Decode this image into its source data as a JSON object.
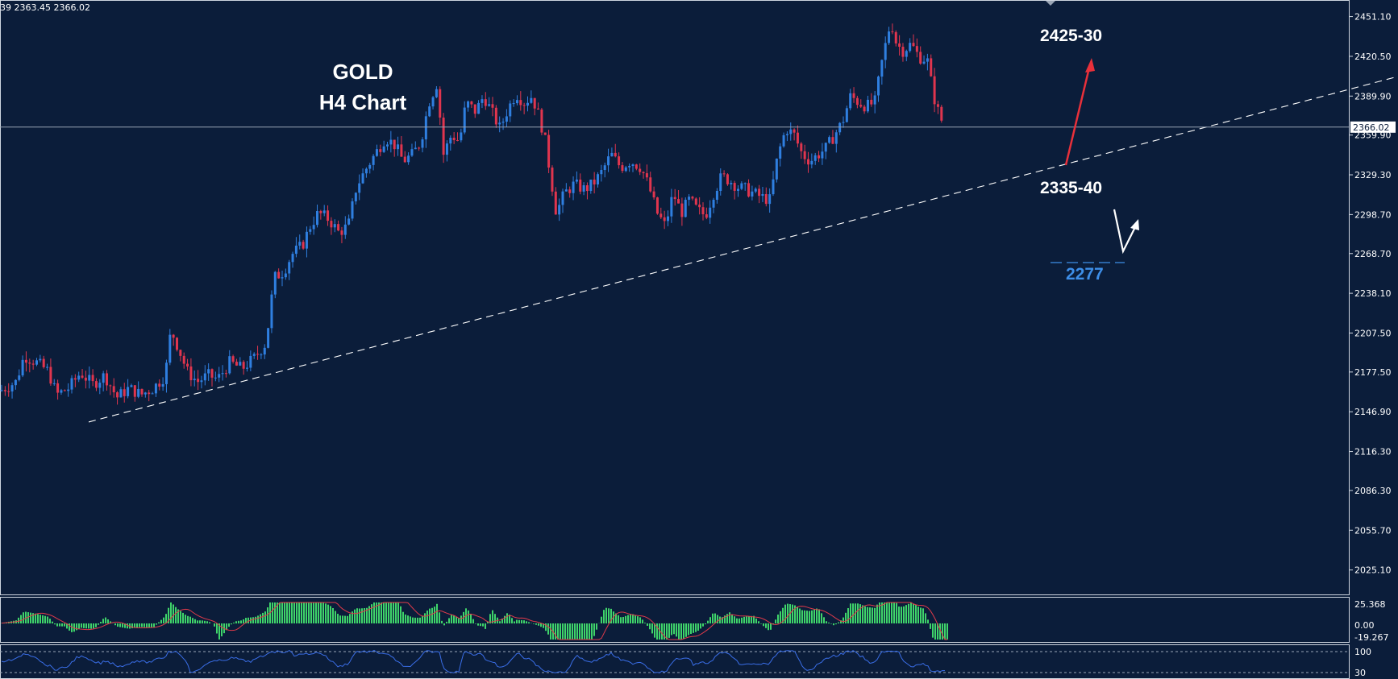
{
  "header": {
    "ohlc_text": "39 2363.45 2366.02"
  },
  "chart_title": {
    "line1": "GOLD",
    "line2": "H4 Chart"
  },
  "annotations": {
    "target_up": "2425-30",
    "support": "2335-40",
    "lower_support": "2277"
  },
  "current_price_label": "2366.02",
  "colors": {
    "background": "#0b1d3a",
    "bull": "#2f7fe0",
    "bear": "#e0354e",
    "arrow_up": "#e8303a",
    "arrow_down": "#ffffff",
    "macd_hist": "#3fd46a",
    "macd_signal": "#e03a4a",
    "rsi_line": "#3a6ee8",
    "annotation_blue": "#3d8ee8"
  },
  "chart_data": {
    "type": "candlestick",
    "title": "GOLD H4 Chart",
    "ylim": [
      2010,
      2462
    ],
    "y_ticks": [
      "2451.10",
      "2420.50",
      "2389.90",
      "2359.90",
      "2329.30",
      "2298.70",
      "2268.70",
      "2238.10",
      "2207.50",
      "2177.50",
      "2146.90",
      "2116.30",
      "2086.30",
      "2055.70",
      "2025.10"
    ],
    "current_price": 2366.02,
    "price_path": [
      [
        0,
        2163
      ],
      [
        20,
        2170
      ],
      [
        30,
        2190
      ],
      [
        45,
        2185
      ],
      [
        60,
        2178
      ],
      [
        70,
        2160
      ],
      [
        85,
        2165
      ],
      [
        100,
        2177
      ],
      [
        115,
        2168
      ],
      [
        130,
        2175
      ],
      [
        145,
        2158
      ],
      [
        160,
        2165
      ],
      [
        175,
        2160
      ],
      [
        190,
        2165
      ],
      [
        205,
        2175
      ],
      [
        212,
        2210
      ],
      [
        222,
        2195
      ],
      [
        232,
        2178
      ],
      [
        245,
        2170
      ],
      [
        258,
        2175
      ],
      [
        270,
        2172
      ],
      [
        285,
        2185
      ],
      [
        300,
        2180
      ],
      [
        315,
        2188
      ],
      [
        330,
        2200
      ],
      [
        340,
        2250
      ],
      [
        352,
        2255
      ],
      [
        362,
        2268
      ],
      [
        375,
        2275
      ],
      [
        385,
        2290
      ],
      [
        395,
        2300
      ],
      [
        408,
        2295
      ],
      [
        420,
        2285
      ],
      [
        432,
        2290
      ],
      [
        442,
        2320
      ],
      [
        455,
        2335
      ],
      [
        468,
        2348
      ],
      [
        478,
        2358
      ],
      [
        490,
        2352
      ],
      [
        500,
        2340
      ],
      [
        512,
        2345
      ],
      [
        522,
        2355
      ],
      [
        532,
        2385
      ],
      [
        542,
        2400
      ],
      [
        550,
        2345
      ],
      [
        560,
        2360
      ],
      [
        570,
        2355
      ],
      [
        578,
        2385
      ],
      [
        590,
        2378
      ],
      [
        600,
        2390
      ],
      [
        612,
        2375
      ],
      [
        620,
        2365
      ],
      [
        630,
        2380
      ],
      [
        640,
        2392
      ],
      [
        650,
        2385
      ],
      [
        660,
        2390
      ],
      [
        668,
        2375
      ],
      [
        675,
        2360
      ],
      [
        680,
        2340
      ],
      [
        690,
        2300
      ],
      [
        700,
        2315
      ],
      [
        712,
        2322
      ],
      [
        725,
        2318
      ],
      [
        735,
        2322
      ],
      [
        745,
        2330
      ],
      [
        758,
        2345
      ],
      [
        770,
        2335
      ],
      [
        782,
        2340
      ],
      [
        795,
        2335
      ],
      [
        805,
        2320
      ],
      [
        815,
        2300
      ],
      [
        825,
        2290
      ],
      [
        835,
        2315
      ],
      [
        845,
        2300
      ],
      [
        855,
        2310
      ],
      [
        865,
        2302
      ],
      [
        875,
        2298
      ],
      [
        885,
        2315
      ],
      [
        895,
        2328
      ],
      [
        905,
        2325
      ],
      [
        915,
        2320
      ],
      [
        925,
        2318
      ],
      [
        935,
        2315
      ],
      [
        945,
        2312
      ],
      [
        955,
        2310
      ],
      [
        965,
        2345
      ],
      [
        975,
        2365
      ],
      [
        985,
        2360
      ],
      [
        995,
        2345
      ],
      [
        1005,
        2340
      ],
      [
        1015,
        2345
      ],
      [
        1025,
        2350
      ],
      [
        1035,
        2360
      ],
      [
        1045,
        2370
      ],
      [
        1055,
        2390
      ],
      [
        1065,
        2385
      ],
      [
        1075,
        2382
      ],
      [
        1085,
        2385
      ],
      [
        1095,
        2420
      ],
      [
        1105,
        2448
      ],
      [
        1112,
        2430
      ],
      [
        1120,
        2425
      ],
      [
        1130,
        2430
      ],
      [
        1140,
        2420
      ],
      [
        1150,
        2418
      ],
      [
        1158,
        2390
      ],
      [
        1165,
        2375
      ],
      [
        1172,
        2366
      ]
    ],
    "trendline": {
      "from": [
        110,
        2139
      ],
      "to": [
        1734,
        2405
      ],
      "style": "dashed"
    },
    "macd": {
      "levels": [
        "25.368",
        "0.00",
        "-19.267"
      ]
    },
    "rsi": {
      "levels": [
        "100",
        "30"
      ]
    }
  }
}
